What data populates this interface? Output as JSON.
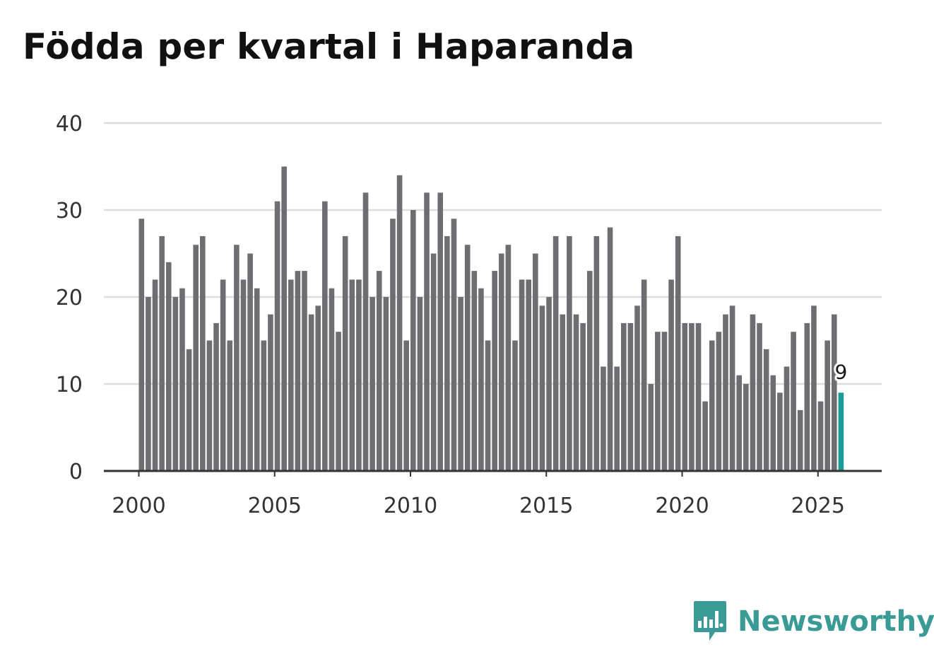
{
  "brand": {
    "name": "Newsworthy",
    "accent": "#1a9a96",
    "bar_color": "#6e6d71",
    "logo_color": "#3a9a95"
  },
  "chart_data": {
    "type": "bar",
    "title": "Födda per kvartal i Haparanda",
    "xlabel": "",
    "ylabel": "",
    "xlim": [
      2000,
      2026
    ],
    "ylim": [
      0,
      40
    ],
    "grid": true,
    "x_ticks": [
      2000,
      2005,
      2010,
      2015,
      2020,
      2025
    ],
    "y_ticks": [
      0,
      10,
      20,
      30,
      40
    ],
    "highlight": {
      "index": 103,
      "label": "9"
    },
    "series": [
      {
        "name": "Födda",
        "start_year": 2000,
        "periods_per_year": 4,
        "values": [
          29,
          20,
          22,
          27,
          24,
          20,
          21,
          14,
          26,
          27,
          15,
          17,
          22,
          15,
          26,
          22,
          25,
          21,
          15,
          18,
          31,
          35,
          22,
          23,
          23,
          18,
          19,
          31,
          21,
          16,
          27,
          22,
          22,
          32,
          20,
          23,
          20,
          29,
          34,
          15,
          30,
          20,
          32,
          25,
          32,
          27,
          29,
          20,
          26,
          23,
          21,
          15,
          23,
          25,
          26,
          15,
          22,
          22,
          25,
          19,
          20,
          27,
          18,
          27,
          18,
          17,
          23,
          27,
          12,
          28,
          12,
          17,
          17,
          19,
          22,
          10,
          16,
          16,
          22,
          27,
          17,
          17,
          17,
          8,
          15,
          16,
          18,
          19,
          11,
          10,
          18,
          17,
          14,
          11,
          9,
          12,
          16,
          7,
          17,
          19,
          8,
          15,
          18,
          9
        ]
      }
    ]
  }
}
